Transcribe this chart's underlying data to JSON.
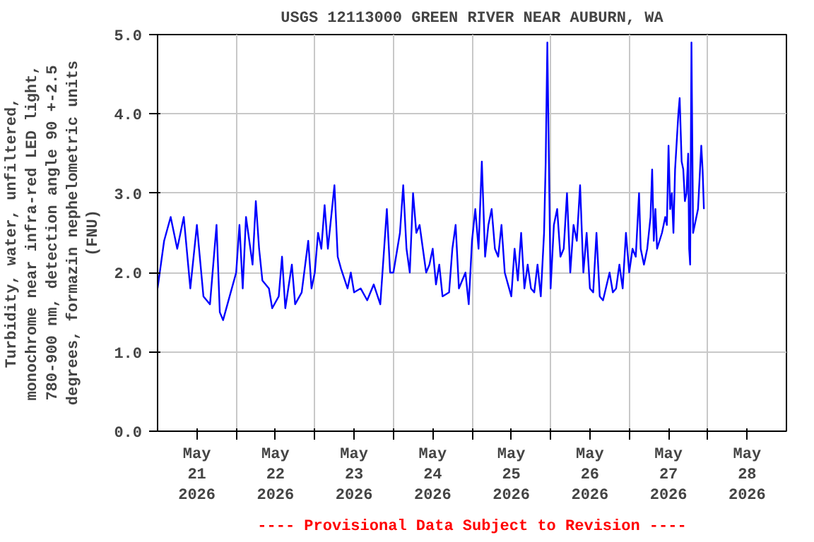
{
  "chart_data": {
    "type": "line",
    "title": "USGS 12113000 GREEN RIVER NEAR AUBURN, WA",
    "ylabel": "Turbidity, water, unfiltered,\nmonochrome near infra-red LED light,\n780-900 nm, detection angle 90 +-2.5\ndegrees, formazin nephelometric units\n(FNU)",
    "annotations": [
      "---- Provisional Data Subject to Revision ----"
    ],
    "xlim": [
      "2026-05-21T00:00",
      "2026-05-29T00:00"
    ],
    "xticks": [
      {
        "value": "2026-05-21T12:00",
        "label": "May\n21\n2026"
      },
      {
        "value": "2026-05-22T00:00",
        "label": null
      },
      {
        "value": "2026-05-22T12:00",
        "label": "May\n22\n2026"
      },
      {
        "value": "2026-05-23T00:00",
        "label": null
      },
      {
        "value": "2026-05-23T12:00",
        "label": "May\n23\n2026"
      },
      {
        "value": "2026-05-24T00:00",
        "label": null
      },
      {
        "value": "2026-05-24T12:00",
        "label": "May\n24\n2026"
      },
      {
        "value": "2026-05-25T00:00",
        "label": null
      },
      {
        "value": "2026-05-25T12:00",
        "label": "May\n25\n2026"
      },
      {
        "value": "2026-05-26T00:00",
        "label": null
      },
      {
        "value": "2026-05-26T12:00",
        "label": "May\n26\n2026"
      },
      {
        "value": "2026-05-27T00:00",
        "label": null
      },
      {
        "value": "2026-05-27T12:00",
        "label": "May\n27\n2026"
      },
      {
        "value": "2026-05-28T00:00",
        "label": null
      },
      {
        "value": "2026-05-28T12:00",
        "label": "May\n28\n2026"
      }
    ],
    "ylim": [
      0,
      5
    ],
    "yticks": [
      {
        "value": 0,
        "label": "0.0"
      },
      {
        "value": 1,
        "label": "1.0"
      },
      {
        "value": 2,
        "label": "2.0"
      },
      {
        "value": 3,
        "label": "3.0"
      },
      {
        "value": 4,
        "label": "4.0"
      },
      {
        "value": 5,
        "label": "5.0"
      }
    ],
    "grid": true,
    "marker": "none",
    "line_style": "solid",
    "series": [
      {
        "color": "#0000ff",
        "x": [
          "2026-05-21T00:00",
          "2026-05-21T02:00",
          "2026-05-21T04:00",
          "2026-05-21T06:00",
          "2026-05-21T08:00",
          "2026-05-21T10:00",
          "2026-05-21T12:00",
          "2026-05-21T14:00",
          "2026-05-21T16:00",
          "2026-05-21T18:00",
          "2026-05-21T19:00",
          "2026-05-21T20:00",
          "2026-05-21T22:00",
          "2026-05-22T00:00",
          "2026-05-22T01:00",
          "2026-05-22T02:00",
          "2026-05-22T03:00",
          "2026-05-22T05:00",
          "2026-05-22T06:00",
          "2026-05-22T07:00",
          "2026-05-22T08:00",
          "2026-05-22T10:00",
          "2026-05-22T11:00",
          "2026-05-22T13:00",
          "2026-05-22T14:00",
          "2026-05-22T15:00",
          "2026-05-22T17:00",
          "2026-05-22T18:00",
          "2026-05-22T20:00",
          "2026-05-22T22:00",
          "2026-05-22T23:00",
          "2026-05-23T00:00",
          "2026-05-23T01:00",
          "2026-05-23T02:00",
          "2026-05-23T03:00",
          "2026-05-23T04:00",
          "2026-05-23T05:00",
          "2026-05-23T06:00",
          "2026-05-23T07:00",
          "2026-05-23T08:00",
          "2026-05-23T10:00",
          "2026-05-23T11:00",
          "2026-05-23T12:00",
          "2026-05-23T14:00",
          "2026-05-23T16:00",
          "2026-05-23T18:00",
          "2026-05-23T20:00",
          "2026-05-23T22:00",
          "2026-05-23T23:00",
          "2026-05-24T00:00",
          "2026-05-24T02:00",
          "2026-05-24T03:00",
          "2026-05-24T04:00",
          "2026-05-24T05:00",
          "2026-05-24T06:00",
          "2026-05-24T07:00",
          "2026-05-24T08:00",
          "2026-05-24T09:00",
          "2026-05-24T10:00",
          "2026-05-24T11:00",
          "2026-05-24T12:00",
          "2026-05-24T13:00",
          "2026-05-24T14:00",
          "2026-05-24T15:00",
          "2026-05-24T17:00",
          "2026-05-24T18:00",
          "2026-05-24T19:00",
          "2026-05-24T20:00",
          "2026-05-24T22:00",
          "2026-05-24T23:00",
          "2026-05-25T00:00",
          "2026-05-25T01:00",
          "2026-05-25T02:00",
          "2026-05-25T03:00",
          "2026-05-25T04:00",
          "2026-05-25T05:00",
          "2026-05-25T06:00",
          "2026-05-25T07:00",
          "2026-05-25T08:00",
          "2026-05-25T09:00",
          "2026-05-25T10:00",
          "2026-05-25T11:00",
          "2026-05-25T12:00",
          "2026-05-25T13:00",
          "2026-05-25T14:00",
          "2026-05-25T15:00",
          "2026-05-25T16:00",
          "2026-05-25T17:00",
          "2026-05-25T18:00",
          "2026-05-25T19:00",
          "2026-05-25T20:00",
          "2026-05-25T21:00",
          "2026-05-25T22:00",
          "2026-05-25T22:30",
          "2026-05-25T23:00",
          "2026-05-26T00:00",
          "2026-05-26T01:00",
          "2026-05-26T02:00",
          "2026-05-26T03:00",
          "2026-05-26T04:00",
          "2026-05-26T05:00",
          "2026-05-26T06:00",
          "2026-05-26T07:00",
          "2026-05-26T08:00",
          "2026-05-26T09:00",
          "2026-05-26T10:00",
          "2026-05-26T11:00",
          "2026-05-26T12:00",
          "2026-05-26T13:00",
          "2026-05-26T14:00",
          "2026-05-26T15:00",
          "2026-05-26T16:00",
          "2026-05-26T18:00",
          "2026-05-26T19:00",
          "2026-05-26T20:00",
          "2026-05-26T21:00",
          "2026-05-26T22:00",
          "2026-05-26T23:00",
          "2026-05-27T00:00",
          "2026-05-27T01:00",
          "2026-05-27T02:00",
          "2026-05-27T03:00",
          "2026-05-27T03:30",
          "2026-05-27T04:30",
          "2026-05-27T05:30",
          "2026-05-27T06:00",
          "2026-05-27T06:30",
          "2026-05-27T07:00",
          "2026-05-27T07:30",
          "2026-05-27T08:00",
          "2026-05-27T08:30",
          "2026-05-27T10:00",
          "2026-05-27T11:00",
          "2026-05-27T11:30",
          "2026-05-27T12:00",
          "2026-05-27T12:30",
          "2026-05-27T13:00",
          "2026-05-27T13:30",
          "2026-05-27T14:00",
          "2026-05-27T15:00",
          "2026-05-27T15:24",
          "2026-05-27T16:00",
          "2026-05-27T16:30",
          "2026-05-27T17:00",
          "2026-05-27T17:30",
          "2026-05-27T18:00",
          "2026-05-27T18:18",
          "2026-05-27T18:36",
          "2026-05-27T19:00",
          "2026-05-27T19:30",
          "2026-05-27T20:00",
          "2026-05-27T21:00",
          "2026-05-27T22:00",
          "2026-05-27T22:24",
          "2026-05-27T22:48"
        ],
        "values": [
          1.8,
          2.4,
          2.7,
          2.3,
          2.7,
          1.8,
          2.6,
          1.7,
          1.6,
          2.6,
          1.5,
          1.4,
          1.7,
          2.0,
          2.6,
          1.8,
          2.7,
          2.1,
          2.9,
          2.3,
          1.9,
          1.8,
          1.55,
          1.7,
          2.2,
          1.55,
          2.1,
          1.6,
          1.75,
          2.4,
          1.8,
          2.0,
          2.5,
          2.3,
          2.85,
          2.3,
          2.7,
          3.1,
          2.2,
          2.05,
          1.8,
          2.0,
          1.75,
          1.8,
          1.65,
          1.85,
          1.6,
          2.8,
          2.0,
          2.0,
          2.5,
          3.1,
          2.3,
          2.0,
          3.0,
          2.5,
          2.6,
          2.3,
          2.0,
          2.1,
          2.3,
          1.85,
          2.1,
          1.7,
          1.75,
          2.3,
          2.6,
          1.8,
          2.0,
          1.6,
          2.4,
          2.8,
          2.3,
          3.4,
          2.2,
          2.6,
          2.8,
          2.3,
          2.2,
          2.6,
          2.0,
          1.85,
          1.7,
          2.3,
          1.9,
          2.5,
          1.8,
          2.1,
          1.8,
          1.75,
          2.1,
          1.7,
          2.5,
          3.4,
          4.9,
          1.8,
          2.6,
          2.8,
          2.2,
          2.3,
          3.0,
          2.0,
          2.6,
          2.4,
          3.1,
          2.0,
          2.5,
          1.8,
          1.75,
          2.5,
          1.7,
          1.65,
          2.0,
          1.75,
          1.8,
          2.1,
          1.8,
          2.5,
          2.0,
          2.3,
          2.2,
          3.0,
          2.3,
          2.1,
          2.3,
          2.5,
          2.7,
          3.3,
          2.4,
          2.8,
          2.3,
          2.5,
          2.7,
          2.6,
          3.6,
          2.8,
          3.0,
          2.5,
          3.3,
          4.0,
          4.2,
          3.4,
          3.3,
          2.9,
          3.0,
          3.5,
          2.3,
          2.1,
          4.9,
          2.5,
          2.6,
          2.8,
          3.6,
          3.3,
          2.8
        ]
      }
    ]
  }
}
